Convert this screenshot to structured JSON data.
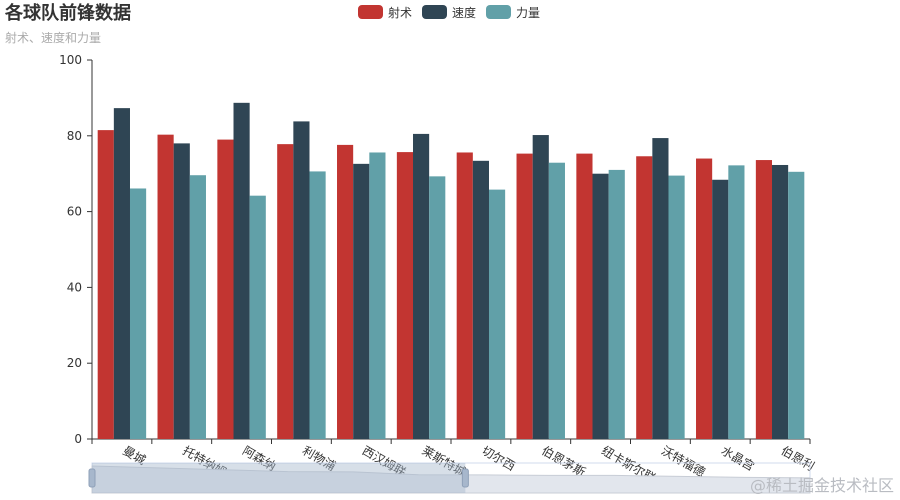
{
  "title": "各球队前锋数据",
  "subtitle": "射术、速度和力量",
  "watermark": "@稀土掘金技术社区",
  "legend": [
    {
      "name": "射术",
      "color": "#c23531"
    },
    {
      "name": "速度",
      "color": "#2f4554"
    },
    {
      "name": "力量",
      "color": "#61a0a8"
    }
  ],
  "chart_data": {
    "type": "bar",
    "title": "各球队前锋数据",
    "subtitle": "射术、速度和力量",
    "xlabel": "",
    "ylabel": "",
    "ylim": [
      0,
      100
    ],
    "yticks": [
      0,
      20,
      40,
      60,
      80,
      100
    ],
    "grid": false,
    "legend_position": "top-center",
    "categories": [
      "曼城",
      "托特纳姆热刺",
      "阿森纳",
      "利物浦",
      "西汉姆联",
      "莱斯特城",
      "切尔西",
      "伯恩茅斯",
      "纽卡斯尔联",
      "沃特福德",
      "水晶宫",
      "伯恩利"
    ],
    "series": [
      {
        "name": "射术",
        "color": "#c23531",
        "values": [
          81.5,
          80.3,
          79.0,
          77.8,
          77.6,
          75.7,
          75.6,
          75.3,
          75.3,
          74.6,
          74.0,
          73.6
        ]
      },
      {
        "name": "速度",
        "color": "#2f4554",
        "values": [
          87.3,
          78.0,
          88.7,
          83.8,
          72.6,
          80.5,
          73.4,
          80.2,
          70.0,
          79.4,
          68.4,
          72.3
        ]
      },
      {
        "name": "力量",
        "color": "#61a0a8",
        "values": [
          66.1,
          69.6,
          64.2,
          70.6,
          75.6,
          69.3,
          65.8,
          72.9,
          71.0,
          69.5,
          72.2,
          70.5
        ]
      }
    ],
    "data_zoom": {
      "type": "slider",
      "start_percent": 0,
      "end_percent": 52
    }
  }
}
